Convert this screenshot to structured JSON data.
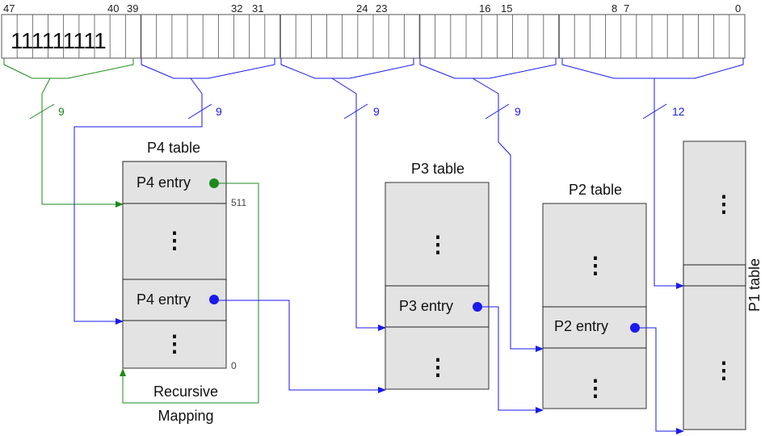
{
  "address_bits": {
    "labels": [
      "47",
      "40",
      "39",
      "32",
      "31",
      "24",
      "23",
      "16",
      "15",
      "8",
      "7",
      "0"
    ],
    "ones_value": "111111111",
    "green_segment_bits": "9",
    "segment_bits": [
      "9",
      "9",
      "9",
      "12"
    ]
  },
  "tables": {
    "p4": {
      "title": "P4 table",
      "entry_upper": "P4 entry",
      "entry_lower": "P4 entry",
      "index_top": "511",
      "index_bottom": "0"
    },
    "p3": {
      "title": "P3 table",
      "entry": "P3 entry"
    },
    "p2": {
      "title": "P2 table",
      "entry": "P2 entry"
    },
    "p1": {
      "title": "P1 table"
    }
  },
  "recursive_label": {
    "line1": "Recursive",
    "line2": "Mapping"
  },
  "colors": {
    "green": "#1c8a1c",
    "blue": "#1a1aee",
    "table_fill": "#e3e3e3",
    "border": "#333333"
  }
}
